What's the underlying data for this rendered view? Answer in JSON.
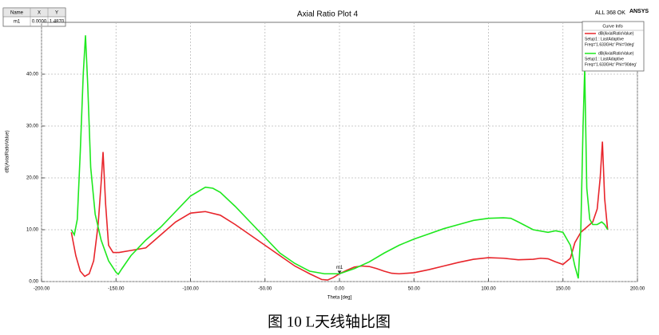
{
  "chart_data": {
    "type": "line",
    "title": "Axial Ratio Plot 4",
    "status": "ALL 368 OK",
    "brand": "ANSYS",
    "x_label": "Theta [deg]",
    "y_label": "dB(AxialRatioValue)",
    "xlim": [
      -200,
      200
    ],
    "ylim": [
      0,
      50
    ],
    "xticks": [
      {
        "value": -200,
        "label": "-200.00"
      },
      {
        "value": -150,
        "label": "-150.00"
      },
      {
        "value": -100,
        "label": "-100.00"
      },
      {
        "value": -50,
        "label": "-50.00"
      },
      {
        "value": 0,
        "label": "0.00"
      },
      {
        "value": 50,
        "label": "50.00"
      },
      {
        "value": 100,
        "label": "100.00"
      },
      {
        "value": 150,
        "label": "150.00"
      },
      {
        "value": 200,
        "label": "200.00"
      }
    ],
    "yticks": [
      {
        "value": 0,
        "label": "0.00"
      },
      {
        "value": 10,
        "label": "10.00"
      },
      {
        "value": 20,
        "label": "20.00"
      },
      {
        "value": 30,
        "label": "30.00"
      },
      {
        "value": 40,
        "label": "40.00"
      }
    ],
    "grid": true,
    "legend_title": "Curve Info",
    "series": [
      {
        "name": "dB(AxialRatioValue)",
        "setup": "Setup1 : LastAdaptive",
        "freq": "Freq='1.633GHz' Phi='0deg'",
        "color": "#e8252b",
        "x": [
          -180,
          -177,
          -174,
          -171,
          -168,
          -165,
          -162,
          -160,
          -158.7,
          -157,
          -155,
          -152,
          -148,
          -140,
          -130,
          -120,
          -110,
          -100,
          -90,
          -80,
          -70,
          -60,
          -50,
          -40,
          -30,
          -20,
          -12,
          -8,
          -4,
          0,
          5,
          10,
          15,
          20,
          25,
          30,
          35,
          40,
          50,
          60,
          70,
          80,
          90,
          100,
          110,
          120,
          130,
          135,
          140,
          145,
          150,
          155,
          158,
          162,
          166,
          170,
          173,
          175,
          176.5,
          178,
          180
        ],
        "values": [
          9.5,
          5,
          2,
          1,
          1.5,
          4,
          11,
          19,
          25,
          15,
          7,
          5.6,
          5.6,
          6,
          6.5,
          9,
          11.5,
          13.2,
          13.5,
          12.8,
          11,
          9,
          7,
          5,
          3,
          1.5,
          0.4,
          0.3,
          0.8,
          1.5,
          2.2,
          2.8,
          3,
          2.9,
          2.5,
          2,
          1.6,
          1.5,
          1.7,
          2.3,
          3,
          3.7,
          4.3,
          4.6,
          4.5,
          4.2,
          4.3,
          4.5,
          4.4,
          3.8,
          3.3,
          4.5,
          7.5,
          9.5,
          10.5,
          11.5,
          14,
          20,
          27,
          16,
          10
        ]
      },
      {
        "name": "dB(AxialRatioValue)",
        "setup": "Setup1 : LastAdaptive",
        "freq": "Freq='1.633GHz' Phi='90deg'",
        "color": "#1ee81e",
        "x": [
          -180,
          -178,
          -176,
          -174,
          -172,
          -170.5,
          -169,
          -167,
          -164,
          -160,
          -155,
          -150,
          -148.5,
          -146,
          -140,
          -130,
          -120,
          -110,
          -100,
          -90,
          -85,
          -80,
          -70,
          -60,
          -50,
          -40,
          -30,
          -20,
          -10,
          0,
          10,
          20,
          30,
          40,
          50,
          60,
          70,
          80,
          90,
          100,
          110,
          115,
          120,
          130,
          140,
          145,
          150,
          155,
          158,
          160.3,
          162,
          163.5,
          164.6,
          166,
          168,
          170,
          173,
          176,
          178,
          180
        ],
        "values": [
          10,
          9,
          12,
          25,
          40,
          47.5,
          38,
          22,
          13,
          8,
          4,
          1.8,
          1.4,
          2.5,
          5,
          8,
          10.5,
          13.5,
          16.5,
          18.2,
          18,
          17.2,
          14.5,
          11.5,
          8.5,
          5.5,
          3.5,
          2,
          1.5,
          1.5,
          2.5,
          3.8,
          5.5,
          7,
          8.2,
          9.2,
          10.2,
          11,
          11.8,
          12.2,
          12.3,
          12.2,
          11.5,
          10,
          9.5,
          9.8,
          9.5,
          7,
          3,
          0.6,
          10,
          30,
          41,
          18,
          12,
          11,
          11,
          11.5,
          11,
          10
        ]
      }
    ],
    "marker_headers": [
      "Name",
      "X",
      "Y"
    ],
    "marker": {
      "name": "m1",
      "x": 0,
      "y": 1.487,
      "value_labels": [
        "0.0000",
        "1.4870"
      ]
    }
  },
  "caption": "图 10 L天线轴比图"
}
